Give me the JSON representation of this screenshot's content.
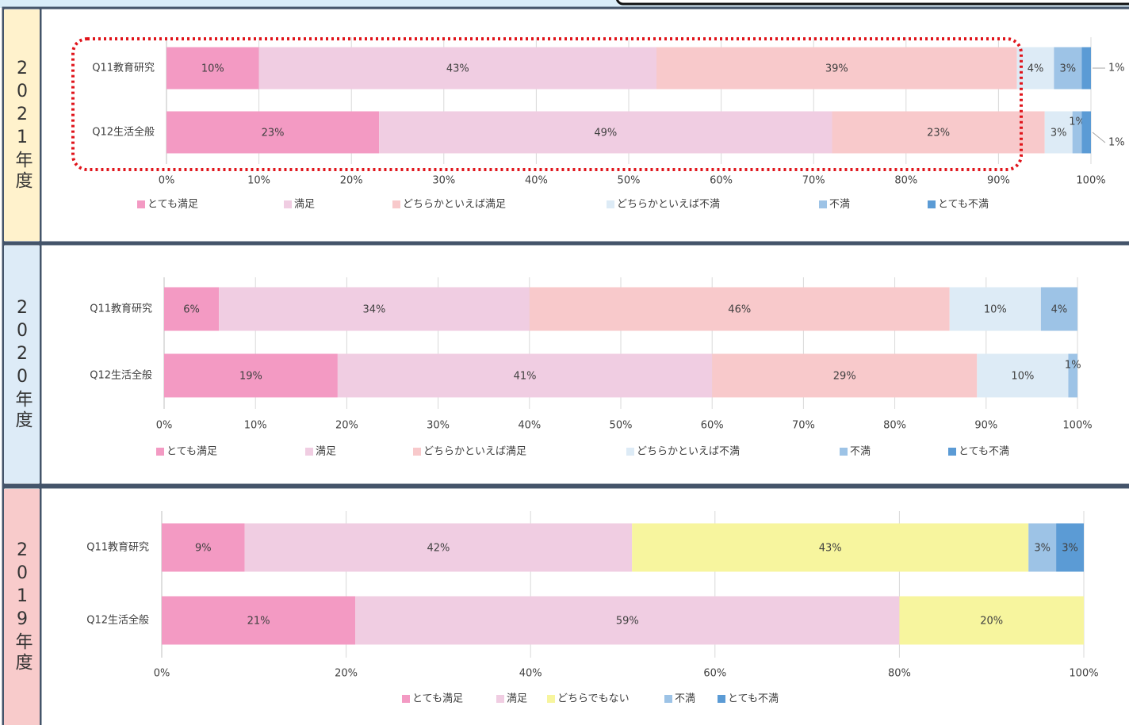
{
  "chart_data": [
    {
      "type": "stacked_bar",
      "label": "2021年度",
      "categories": [
        "Q11教育研究",
        "Q12生活全般"
      ],
      "series": [
        {
          "name": "とても満足",
          "color": "#f39ac3",
          "values": [
            10,
            23
          ],
          "value_labels": [
            "10%",
            "23%"
          ]
        },
        {
          "name": "満足",
          "color": "#f0cde2",
          "values": [
            43,
            49
          ],
          "value_labels": [
            "43%",
            "49%"
          ]
        },
        {
          "name": "どちらかといえば満足",
          "color": "#f8c9cb",
          "values": [
            39,
            23
          ],
          "value_labels": [
            "39%",
            "23%"
          ]
        },
        {
          "name": "どちらかといえば不満",
          "color": "#ddebf6",
          "values": [
            4,
            3
          ],
          "value_labels": [
            "4%",
            "3%"
          ]
        },
        {
          "name": "不満",
          "color": "#9dc3e6",
          "values": [
            3,
            1
          ],
          "value_labels": [
            "3%",
            "1%"
          ]
        },
        {
          "name": "とても不満",
          "color": "#5b9bd5",
          "values": [
            1,
            1
          ],
          "value_labels": [
            "1%",
            "1%"
          ]
        }
      ],
      "xlim": [
        0,
        100
      ],
      "xticks": [
        {
          "value": 0,
          "label": "0%"
        },
        {
          "value": 10,
          "label": "10%"
        },
        {
          "value": 20,
          "label": "20%"
        },
        {
          "value": 30,
          "label": "30%"
        },
        {
          "value": 40,
          "label": "40%"
        },
        {
          "value": 50,
          "label": "50%"
        },
        {
          "value": 60,
          "label": "60%"
        },
        {
          "value": 70,
          "label": "70%"
        },
        {
          "value": 80,
          "label": "80%"
        },
        {
          "value": 90,
          "label": "90%"
        },
        {
          "value": 100,
          "label": "100%"
        }
      ],
      "grid": true,
      "legend": "bottom"
    },
    {
      "type": "stacked_bar",
      "label": "2020年度",
      "categories": [
        "Q11教育研究",
        "Q12生活全般"
      ],
      "series": [
        {
          "name": "とても満足",
          "color": "#f39ac3",
          "values": [
            6,
            19
          ],
          "value_labels": [
            "6%",
            "19%"
          ]
        },
        {
          "name": "満足",
          "color": "#f0cde2",
          "values": [
            34,
            41
          ],
          "value_labels": [
            "34%",
            "41%"
          ]
        },
        {
          "name": "どちらかといえば満足",
          "color": "#f8c9cb",
          "values": [
            46,
            29
          ],
          "value_labels": [
            "46%",
            "29%"
          ]
        },
        {
          "name": "どちらかといえば不満",
          "color": "#ddebf6",
          "values": [
            10,
            10
          ],
          "value_labels": [
            "10%",
            "10%"
          ]
        },
        {
          "name": "不満",
          "color": "#9dc3e6",
          "values": [
            4,
            1
          ],
          "value_labels": [
            "4%",
            "1%"
          ]
        },
        {
          "name": "とても不満",
          "color": "#5b9bd5",
          "values": [
            null,
            null
          ],
          "value_labels": [
            null,
            null
          ]
        }
      ],
      "xlim": [
        0,
        100
      ],
      "xticks": [
        {
          "value": 0,
          "label": "0%"
        },
        {
          "value": 10,
          "label": "10%"
        },
        {
          "value": 20,
          "label": "20%"
        },
        {
          "value": 30,
          "label": "30%"
        },
        {
          "value": 40,
          "label": "40%"
        },
        {
          "value": 50,
          "label": "50%"
        },
        {
          "value": 60,
          "label": "60%"
        },
        {
          "value": 70,
          "label": "70%"
        },
        {
          "value": 80,
          "label": "80%"
        },
        {
          "value": 90,
          "label": "90%"
        },
        {
          "value": 100,
          "label": "100%"
        }
      ],
      "grid": true,
      "legend": "bottom"
    },
    {
      "type": "stacked_bar",
      "label": "2019年度",
      "categories": [
        "Q11教育研究",
        "Q12生活全般"
      ],
      "series": [
        {
          "name": "とても満足",
          "color": "#f39ac3",
          "values": [
            9,
            21
          ],
          "value_labels": [
            "9%",
            "21%"
          ]
        },
        {
          "name": "満足",
          "color": "#f0cde2",
          "values": [
            42,
            59
          ],
          "value_labels": [
            "42%",
            "59%"
          ]
        },
        {
          "name": "どちらでもない",
          "color": "#f7f59e",
          "values": [
            43,
            20
          ],
          "value_labels": [
            "43%",
            "20%"
          ]
        },
        {
          "name": "不満",
          "color": "#9dc3e6",
          "values": [
            3,
            null
          ],
          "value_labels": [
            "3%",
            null
          ]
        },
        {
          "name": "とても不満",
          "color": "#5b9bd5",
          "values": [
            3,
            null
          ],
          "value_labels": [
            "3%",
            null
          ]
        }
      ],
      "xlim": [
        0,
        100
      ],
      "xticks": [
        {
          "value": 0,
          "label": "0%"
        },
        {
          "value": 20,
          "label": "20%"
        },
        {
          "value": 40,
          "label": "40%"
        },
        {
          "value": 60,
          "label": "60%"
        },
        {
          "value": 80,
          "label": "80%"
        },
        {
          "value": 100,
          "label": "100%"
        }
      ],
      "grid": true,
      "legend": "bottom"
    }
  ]
}
